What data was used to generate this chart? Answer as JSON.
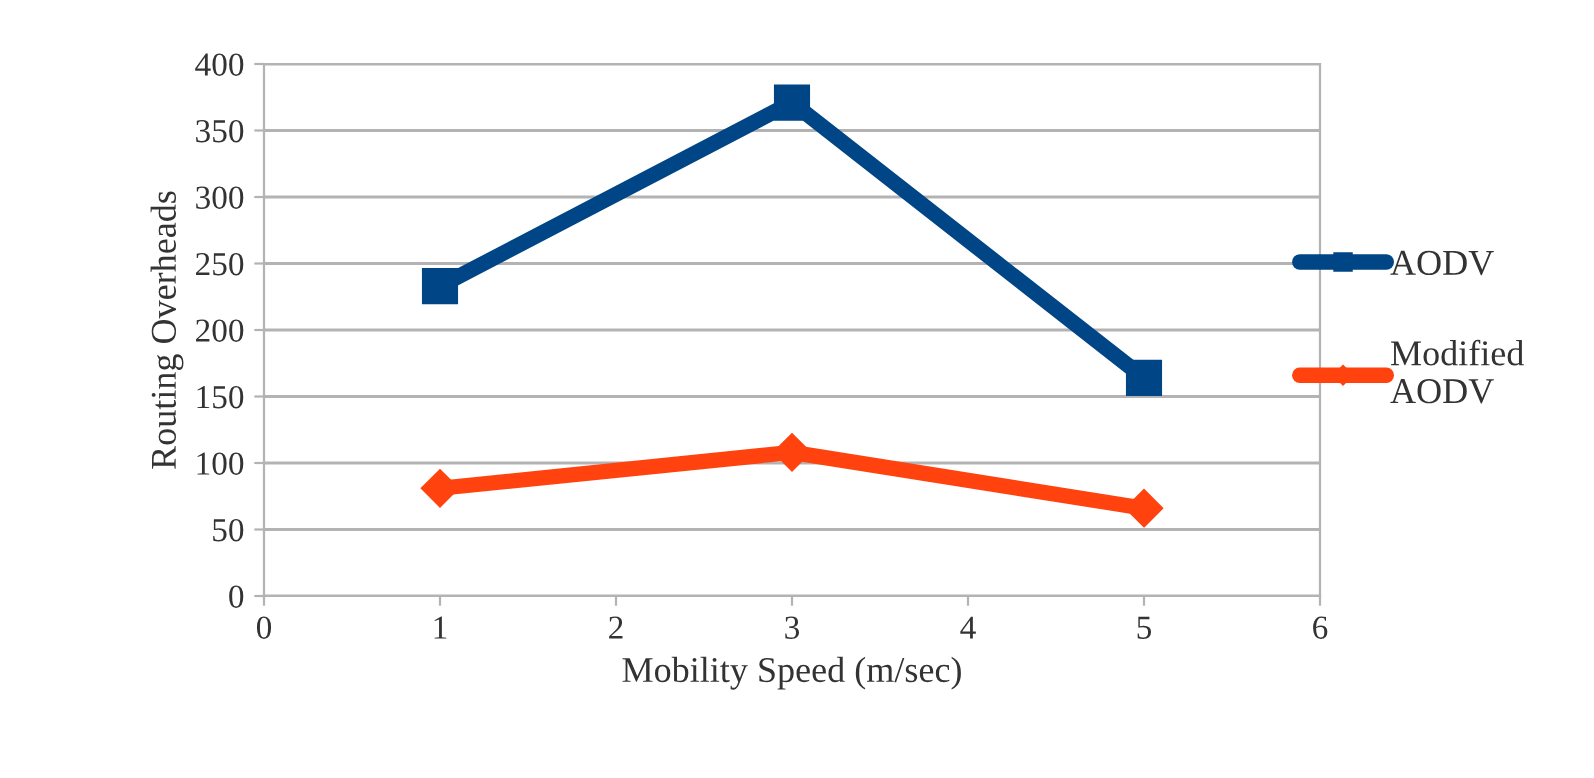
{
  "chart_data": {
    "type": "line",
    "xlabel": "Mobility Speed (m/sec)",
    "ylabel": "Routing Overheads",
    "x": [
      1,
      3,
      5
    ],
    "series": [
      {
        "name": "AODV",
        "color": "#004586",
        "values": [
          233,
          371,
          164
        ],
        "marker": "square"
      },
      {
        "name": "Modified\nAODV",
        "color": "#ff420e",
        "values": [
          81,
          108,
          66
        ],
        "marker": "diamond"
      }
    ],
    "xlim": [
      0,
      6
    ],
    "xticks": [
      0,
      1,
      2,
      3,
      4,
      5,
      6
    ],
    "ylim": [
      0,
      400
    ],
    "yticks": [
      0,
      50,
      100,
      150,
      200,
      250,
      300,
      350,
      400
    ],
    "grid": "y",
    "legend": "right",
    "line_style": "solid"
  }
}
